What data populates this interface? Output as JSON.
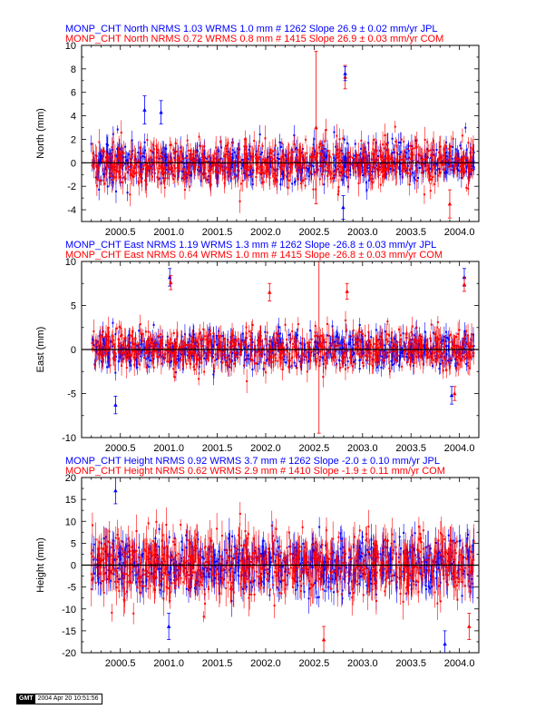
{
  "chart_data": [
    {
      "type": "scatter",
      "panel": "north",
      "title_lines": [
        {
          "text": "MONP_CHT North NRMS 1.03 WRMS  1.0 mm # 1262 Slope   26.9 ±  0.02 mm/yr JPL",
          "color": "#0000ff"
        },
        {
          "text": "MONP_CHT North NRMS 0.72 WRMS  0.8 mm # 1415 Slope   26.9 ±  0.03 mm/yr COM",
          "color": "#ff0000"
        }
      ],
      "xlabel": "",
      "ylabel": "North (mm)",
      "xlim": [
        2000.1,
        2004.2
      ],
      "ylim": [
        -5,
        10
      ],
      "x_ticks": [
        2000.5,
        2001.0,
        2001.5,
        2002.0,
        2002.5,
        2003.0,
        2003.5,
        2004.0
      ],
      "x_tick_labels": [
        "2000.5",
        "2001.0",
        "2001.5",
        "2002.0",
        "2002.5",
        "2003.0",
        "2003.5",
        "2004.0"
      ],
      "y_ticks": [
        -4,
        -2,
        0,
        2,
        4,
        6,
        8,
        10
      ],
      "y_tick_labels": [
        "-4",
        "-2",
        "0",
        "2",
        "4",
        "6",
        "8",
        "10"
      ],
      "grid": false,
      "x_range": [
        2000.2,
        2004.15
      ],
      "series": [
        {
          "name": "JPL",
          "color": "#0000ff",
          "n": 1262,
          "wrms": 1.0,
          "sigma": 0.8,
          "seed": 11
        },
        {
          "name": "COM",
          "color": "#ff0000",
          "n": 1415,
          "wrms": 0.8,
          "sigma": 0.9,
          "seed": 23
        }
      ],
      "outliers": [
        {
          "x": 2002.82,
          "y": 7.3,
          "err": 1.0,
          "color": "#ff0000"
        },
        {
          "x": 2002.82,
          "y": 7.6,
          "err": 0.6,
          "color": "#0000ff"
        },
        {
          "x": 2002.52,
          "y": 3.0,
          "err": 6.5,
          "color": "#ff0000"
        },
        {
          "x": 2000.75,
          "y": 4.5,
          "err": 1.2,
          "color": "#0000ff"
        },
        {
          "x": 2000.92,
          "y": 4.3,
          "err": 1.0,
          "color": "#0000ff"
        },
        {
          "x": 2002.8,
          "y": -3.8,
          "err": 1.0,
          "color": "#0000ff"
        },
        {
          "x": 2003.9,
          "y": -3.5,
          "err": 1.2,
          "color": "#ff0000"
        }
      ],
      "zero_line": 0
    },
    {
      "type": "scatter",
      "panel": "east",
      "title_lines": [
        {
          "text": "MONP_CHT East NRMS 1.19 WRMS  1.3 mm # 1262 Slope  -26.8 ±  0.03 mm/yr JPL",
          "color": "#0000ff"
        },
        {
          "text": "MONP_CHT East NRMS 0.64 WRMS  1.0 mm # 1415 Slope  -26.8 ±  0.03 mm/yr COM",
          "color": "#ff0000"
        }
      ],
      "xlabel": "",
      "ylabel": "East (mm)",
      "xlim": [
        2000.1,
        2004.2
      ],
      "ylim": [
        -10,
        10
      ],
      "x_ticks": [
        2000.5,
        2001.0,
        2001.5,
        2002.0,
        2002.5,
        2003.0,
        2003.5,
        2004.0
      ],
      "x_tick_labels": [
        "2000.5",
        "2001.0",
        "2001.5",
        "2002.0",
        "2002.5",
        "2003.0",
        "2003.5",
        "2004.0"
      ],
      "y_ticks": [
        -10,
        -5,
        0,
        5,
        10
      ],
      "y_tick_labels": [
        "-10",
        "-5",
        "0",
        "5",
        "10"
      ],
      "grid": false,
      "x_range": [
        2000.2,
        2004.15
      ],
      "series": [
        {
          "name": "JPL",
          "color": "#0000ff",
          "n": 1262,
          "wrms": 1.3,
          "sigma": 1.0,
          "seed": 37
        },
        {
          "name": "COM",
          "color": "#ff0000",
          "n": 1415,
          "wrms": 1.0,
          "sigma": 1.1,
          "seed": 41
        }
      ],
      "outliers": [
        {
          "x": 2001.01,
          "y": 8.2,
          "err": 1.0,
          "color": "#0000ff"
        },
        {
          "x": 2001.02,
          "y": 7.6,
          "err": 0.8,
          "color": "#ff0000"
        },
        {
          "x": 2002.04,
          "y": 6.5,
          "err": 1.0,
          "color": "#ff0000"
        },
        {
          "x": 2002.84,
          "y": 6.6,
          "err": 0.9,
          "color": "#ff0000"
        },
        {
          "x": 2004.05,
          "y": 8.2,
          "err": 1.0,
          "color": "#0000ff"
        },
        {
          "x": 2004.05,
          "y": 7.4,
          "err": 0.8,
          "color": "#ff0000"
        },
        {
          "x": 2002.55,
          "y": 0.5,
          "err": 10.0,
          "color": "#ff0000"
        },
        {
          "x": 2000.45,
          "y": -6.3,
          "err": 1.0,
          "color": "#0000ff"
        },
        {
          "x": 2003.92,
          "y": -5.2,
          "err": 1.0,
          "color": "#0000ff"
        },
        {
          "x": 2003.95,
          "y": -5.0,
          "err": 0.8,
          "color": "#ff0000"
        }
      ],
      "zero_line": 0
    },
    {
      "type": "scatter",
      "panel": "height",
      "title_lines": [
        {
          "text": "MONP_CHT Height NRMS 0.92 WRMS  3.7 mm # 1262 Slope   -2.0 ±  0.10 mm/yr JPL",
          "color": "#0000ff"
        },
        {
          "text": "MONP_CHT Height NRMS 0.62 WRMS  2.9 mm # 1410 Slope   -1.9 ±  0.11 mm/yr COM",
          "color": "#ff0000"
        }
      ],
      "xlabel": "",
      "ylabel": "Height (mm)",
      "xlim": [
        2000.1,
        2004.2
      ],
      "ylim": [
        -20,
        20
      ],
      "x_ticks": [
        2000.5,
        2001.0,
        2001.5,
        2002.0,
        2002.5,
        2003.0,
        2003.5,
        2004.0
      ],
      "x_tick_labels": [
        "2000.5",
        "2001.0",
        "2001.5",
        "2002.0",
        "2002.5",
        "2003.0",
        "2003.5",
        "2004.0"
      ],
      "y_ticks": [
        -20,
        -15,
        -10,
        -5,
        0,
        5,
        10,
        15,
        20
      ],
      "y_tick_labels": [
        "-20",
        "-15",
        "-10",
        "-5",
        "0",
        "5",
        "10",
        "15",
        "20"
      ],
      "grid": false,
      "x_range": [
        2000.2,
        2004.15
      ],
      "series": [
        {
          "name": "JPL",
          "color": "#0000ff",
          "n": 1262,
          "wrms": 3.7,
          "sigma": 3.0,
          "seed": 53
        },
        {
          "name": "COM",
          "color": "#ff0000",
          "n": 1410,
          "wrms": 2.9,
          "sigma": 3.4,
          "seed": 67
        }
      ],
      "outliers": [
        {
          "x": 2000.45,
          "y": 17.0,
          "err": 3.0,
          "color": "#0000ff"
        },
        {
          "x": 2003.85,
          "y": -18.0,
          "err": 3.0,
          "color": "#0000ff"
        },
        {
          "x": 2004.1,
          "y": -14.0,
          "err": 3.0,
          "color": "#ff0000"
        },
        {
          "x": 2002.6,
          "y": -17.0,
          "err": 3.0,
          "color": "#ff0000"
        },
        {
          "x": 2001.0,
          "y": -14.0,
          "err": 3.0,
          "color": "#0000ff"
        }
      ],
      "zero_line": 0
    }
  ],
  "footer": {
    "logo": "GMT",
    "timestamp": "2004 Apr 20 10:51:56"
  }
}
